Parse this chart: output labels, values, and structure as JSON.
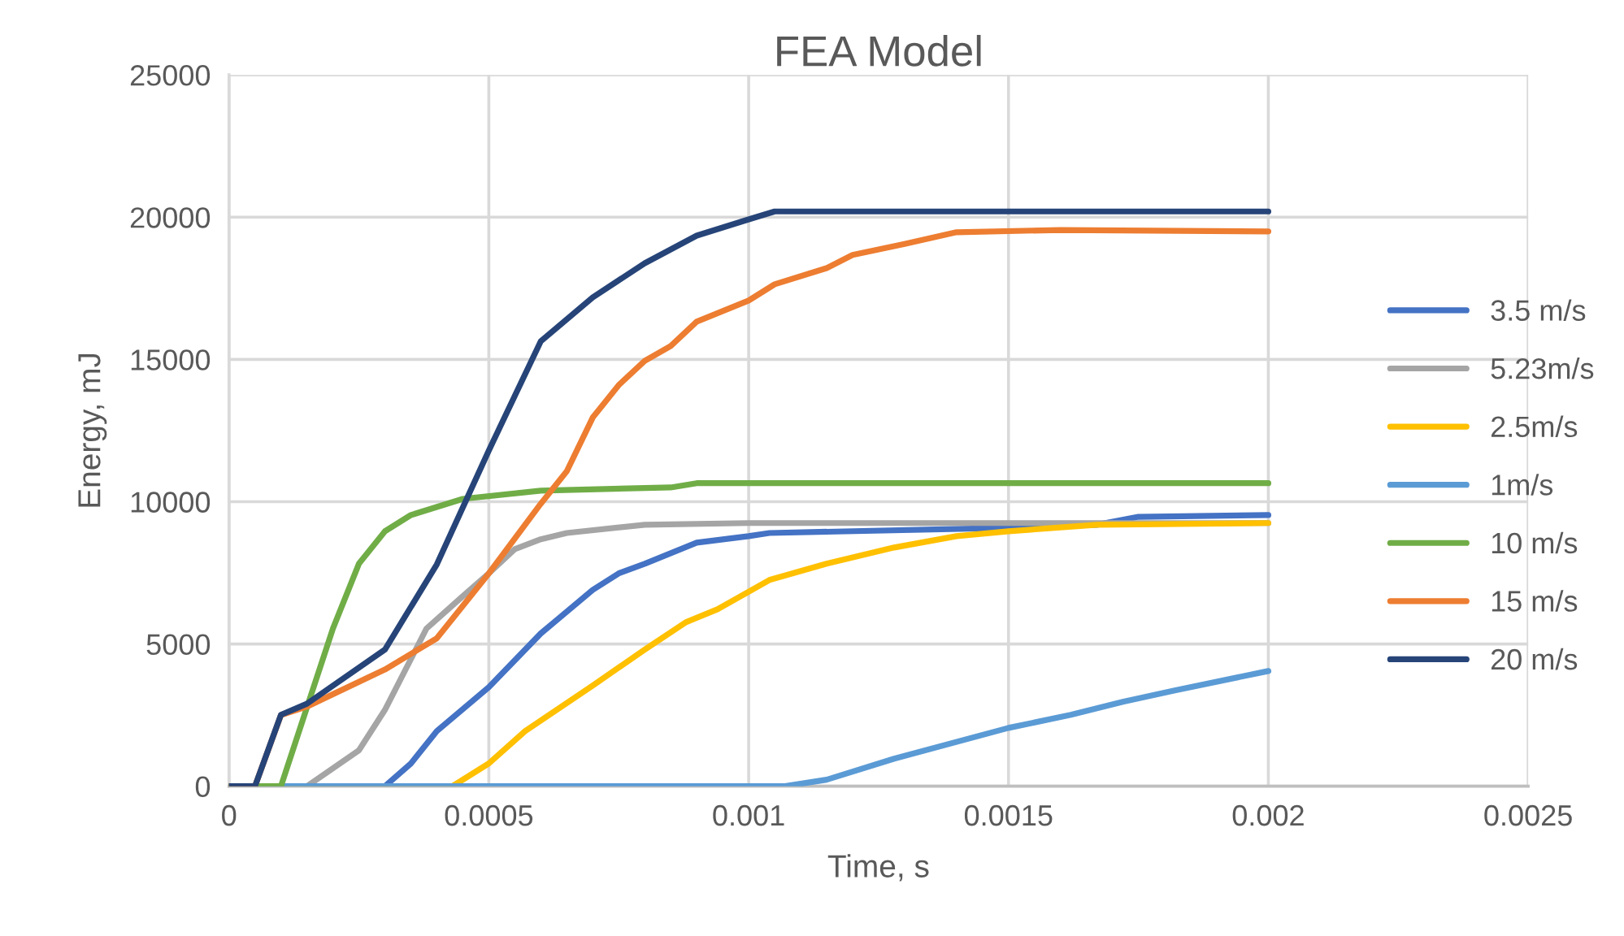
{
  "chart_data": {
    "type": "line",
    "title": "FEA Model",
    "xlabel": "Time, s",
    "ylabel": "Energy, mJ",
    "xlim": [
      0,
      0.0025
    ],
    "xticks": [
      0,
      0.0005,
      0.001,
      0.0015,
      0.002,
      0.0025
    ],
    "ylim": [
      0,
      25000
    ],
    "yticks": [
      0,
      5000,
      10000,
      15000,
      20000,
      25000
    ],
    "grid": true,
    "legend": "right",
    "marker": "none",
    "line_style": "solid",
    "series": [
      {
        "name": "3.5 m/s",
        "color": "#4472c4",
        "x": [
          0,
          0.0003,
          0.00035,
          0.0004,
          0.0005,
          0.0006,
          0.0007,
          0.00075,
          0.0008,
          0.0009,
          0.001,
          0.00104,
          0.0015,
          0.00167,
          0.00175,
          0.002
        ],
        "values": [
          0,
          0,
          800,
          1940,
          3480,
          5370,
          6900,
          7480,
          7820,
          8560,
          8790,
          8900,
          9080,
          9190,
          9470,
          9530
        ]
      },
      {
        "name": "5.23m/s",
        "color": "#a5a5a5",
        "x": [
          0,
          0.00015,
          0.00025,
          0.0003,
          0.00038,
          0.00045,
          0.0005,
          0.00055,
          0.0006,
          0.00065,
          0.0008,
          0.001,
          0.002
        ],
        "values": [
          0,
          0,
          1260,
          2680,
          5540,
          6680,
          7480,
          8330,
          8680,
          8900,
          9190,
          9250,
          9250
        ]
      },
      {
        "name": "2.5m/s",
        "color": "#ffc000",
        "x": [
          0,
          0.00043,
          0.0005,
          0.00057,
          0.0007,
          0.0008,
          0.00088,
          0.00094,
          0.00104,
          0.00115,
          0.00128,
          0.0014,
          0.0015,
          0.00167,
          0.002
        ],
        "values": [
          0,
          0,
          800,
          1940,
          3540,
          4800,
          5770,
          6220,
          7250,
          7820,
          8390,
          8790,
          8960,
          9190,
          9250
        ]
      },
      {
        "name": "1m/s",
        "color": "#5b9bd5",
        "x": [
          0,
          0.00107,
          0.00115,
          0.00128,
          0.0015,
          0.00162,
          0.00172,
          0.00182,
          0.002
        ],
        "values": [
          0,
          0,
          230,
          970,
          2050,
          2510,
          2970,
          3370,
          4050
        ]
      },
      {
        "name": "10 m/s",
        "color": "#70ad47",
        "x": [
          0,
          0.0001,
          0.0002,
          0.00025,
          0.0003,
          0.00035,
          0.00045,
          0.0006,
          0.00085,
          0.0009,
          0.002
        ],
        "values": [
          0,
          0,
          5540,
          7820,
          8960,
          9530,
          10100,
          10390,
          10500,
          10650,
          10650
        ]
      },
      {
        "name": "15 m/s",
        "color": "#ed7d31",
        "x": [
          0,
          5e-05,
          0.0001,
          0.00015,
          0.0003,
          0.0004,
          0.0005,
          0.0006,
          0.00065,
          0.0007,
          0.00075,
          0.0008,
          0.00085,
          0.0009,
          0.001,
          0.00105,
          0.00115,
          0.0012,
          0.0013,
          0.0014,
          0.0016,
          0.002
        ],
        "values": [
          0,
          0,
          2500,
          2800,
          4100,
          5200,
          7480,
          9930,
          11070,
          12960,
          14100,
          14950,
          15470,
          16330,
          17070,
          17640,
          18210,
          18670,
          19060,
          19470,
          19550,
          19500
        ]
      },
      {
        "name": "20 m/s",
        "color": "#264478",
        "x": [
          0,
          5e-05,
          0.0001,
          0.00015,
          0.0003,
          0.0004,
          0.0005,
          0.0006,
          0.0007,
          0.0008,
          0.0009,
          0.001,
          0.00105,
          0.002
        ],
        "values": [
          0,
          0,
          2510,
          2900,
          4800,
          7800,
          11800,
          15640,
          17180,
          18380,
          19350,
          19920,
          20200,
          20200
        ]
      }
    ]
  }
}
